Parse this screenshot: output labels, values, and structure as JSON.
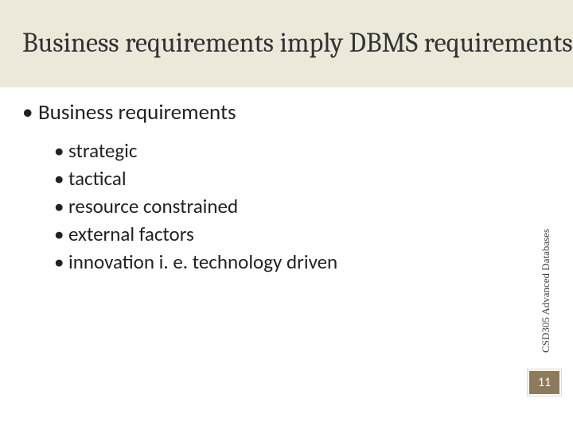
{
  "colors": {
    "title_bar_bg": "#ece9da",
    "title_text": "#333333",
    "body_text": "#222222",
    "side_label_text": "#444444",
    "page_box_bg": "#8c7a5b",
    "page_box_border": "#ffffff",
    "page_number_text": "#ffffff",
    "slide_bg": "#ffffff"
  },
  "typography": {
    "title_font": "Cambria",
    "title_size_pt": 28,
    "body_font": "Calibri",
    "level1_size_pt": 22,
    "level2_size_pt": 20,
    "side_label_font": "Georgia",
    "side_label_size_pt": 10
  },
  "title": "Business requirements imply DBMS requirements",
  "content": {
    "level1": "Business requirements",
    "level2": [
      "strategic",
      "tactical",
      "resource constrained",
      "external factors",
      "innovation i. e. technology driven"
    ]
  },
  "side_label": "CSD305 Advanced Databases",
  "page_number": "11",
  "bullet_char": "•"
}
